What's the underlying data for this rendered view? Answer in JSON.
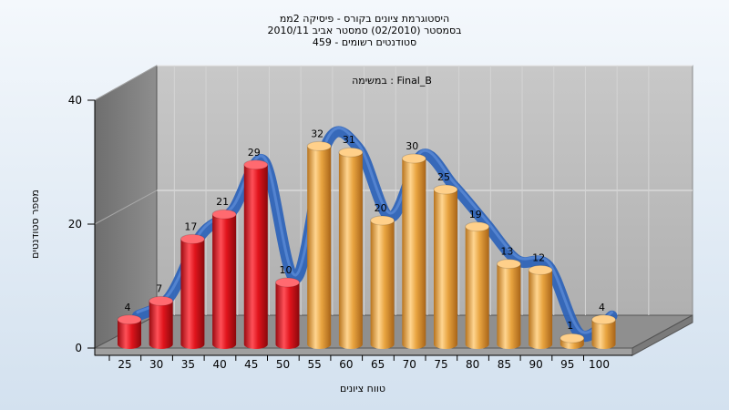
{
  "chart_data": {
    "type": "bar",
    "title": "היסטוגרמת ציונים בקורס - פיסיקה 2ממ",
    "subtitle_lines": [
      "בסמסטר (02/2010) סמסטר אביב 2010/11",
      "סטודנטים רשומים - 459"
    ],
    "task_label": "במשימה : Final_B",
    "xlabel": "טווח ציונים",
    "ylabel": "מספר סטודנטים",
    "ylim": [
      0,
      40
    ],
    "yticks": [
      0,
      20,
      40
    ],
    "categories": [
      "25",
      "30",
      "35",
      "40",
      "45",
      "50",
      "55",
      "60",
      "65",
      "70",
      "75",
      "80",
      "85",
      "90",
      "95",
      "100"
    ],
    "values": [
      4,
      7,
      17,
      21,
      29,
      10,
      32,
      31,
      20,
      30,
      25,
      19,
      13,
      12,
      1,
      4
    ],
    "bar_colors": {
      "below_pass": "#e0141c",
      "pass": "#e8a440"
    },
    "pass_threshold": 55,
    "curve_color": "#2f64b8",
    "grid": true,
    "legend": "none"
  }
}
